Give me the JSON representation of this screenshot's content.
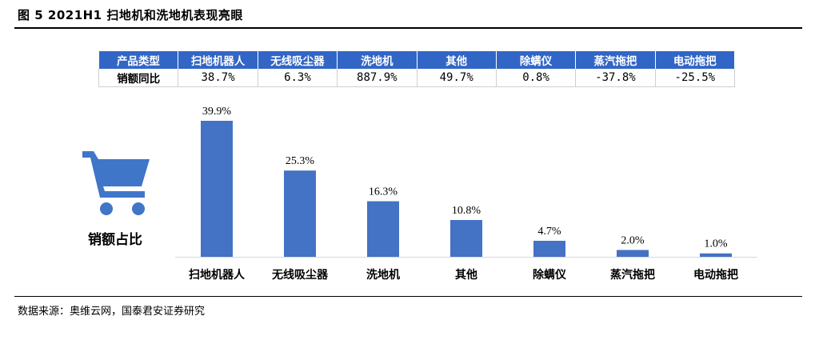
{
  "figure": {
    "title": "图 5 2021H1 扫地机和洗地机表现亮眼",
    "source": "数据来源：奥维云网，国泰君安证券研究",
    "side_label": "销额占比",
    "icon": "shopping-cart-icon"
  },
  "table": {
    "header_label": "产品类型",
    "row_label": "销额同比",
    "columns": [
      "扫地机器人",
      "无线吸尘器",
      "洗地机",
      "其他",
      "除螨仪",
      "蒸汽拖把",
      "电动拖把"
    ],
    "values": [
      "38.7%",
      "6.3%",
      "887.9%",
      "49.7%",
      "0.8%",
      "-37.8%",
      "-25.5%"
    ]
  },
  "colors": {
    "bar": "#4472c4",
    "table_header": "#3266c6",
    "icon": "#3f76c8"
  },
  "chart_data": {
    "type": "bar",
    "title": "",
    "xlabel": "",
    "ylabel": "",
    "categories": [
      "扫地机器人",
      "无线吸尘器",
      "洗地机",
      "其他",
      "除螨仪",
      "蒸汽拖把",
      "电动拖把"
    ],
    "values": [
      39.9,
      25.3,
      16.3,
      10.8,
      4.7,
      2.0,
      1.0
    ],
    "value_labels": [
      "39.9%",
      "25.3%",
      "16.3%",
      "10.8%",
      "4.7%",
      "2.0%",
      "1.0%"
    ],
    "ylim": [
      0,
      40
    ],
    "grid": false,
    "legend": "none"
  }
}
